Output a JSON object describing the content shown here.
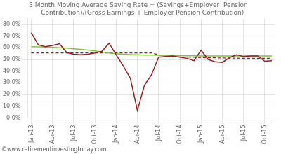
{
  "chart_data": {
    "type": "line",
    "title": [
      "3 Month Moving Average Saving Rate = (Savings+Employer  Pension",
      "    Contribution)/(Gross Earnings + Employer Pension Contribution)"
    ],
    "annotations": [
      "©www.retirementinvestingtoday.com"
    ],
    "categories": [
      "Jan-13",
      null,
      null,
      "Apr-13",
      null,
      null,
      "Jul-13",
      null,
      null,
      "Oct-13",
      null,
      null,
      "Jan-14",
      null,
      null,
      "Apr-14",
      null,
      null,
      "Jul-14",
      null,
      null,
      "Oct-14",
      null,
      null,
      "Jan-15",
      null,
      null,
      "Apr-15",
      null,
      null,
      "Jul-15",
      null,
      null,
      "Oct-15",
      null
    ],
    "series": [
      {
        "color": "#9b1c1c",
        "line_style": "solid",
        "values": [
          0.73,
          0.625,
          0.61,
          0.62,
          0.635,
          0.56,
          0.545,
          0.54,
          0.545,
          0.555,
          0.57,
          0.64,
          0.54,
          0.445,
          0.34,
          0.065,
          0.28,
          0.37,
          0.52,
          0.525,
          0.53,
          0.52,
          0.51,
          0.49,
          0.58,
          0.5,
          0.48,
          0.475,
          0.515,
          0.54,
          0.525,
          0.53,
          0.53,
          0.485,
          0.49
        ]
      },
      {
        "color": "#7dc832",
        "line_style": "solid",
        "values": [
          0.61,
          0.608,
          0.607,
          0.605,
          0.601,
          0.597,
          0.592,
          0.587,
          0.581,
          0.573,
          0.564,
          0.556,
          0.549,
          0.545,
          0.542,
          0.54,
          0.538,
          0.537,
          0.536,
          0.535,
          0.534,
          0.533,
          0.532,
          0.531,
          0.53,
          0.53,
          0.53,
          0.53,
          0.53,
          0.53,
          0.53,
          0.53,
          0.53,
          0.53,
          0.53
        ]
      },
      {
        "color": "#9b1c1c",
        "line_style": "dashed",
        "values": [
          0.556,
          0.556,
          0.556,
          0.556,
          0.556,
          0.556,
          0.556,
          0.556,
          0.556,
          0.556,
          0.556,
          0.556,
          0.556,
          0.556,
          0.556,
          0.556,
          0.556,
          0.556,
          0.54,
          0.53,
          0.524,
          0.522,
          0.52,
          0.518,
          0.516,
          0.515,
          0.514,
          0.513,
          0.512,
          0.511,
          0.51,
          0.51,
          0.51,
          0.51,
          0.51
        ]
      }
    ],
    "ylim": [
      0.0,
      0.85
    ],
    "yticks": [
      {
        "value": 0.0,
        "label": "0.0%"
      },
      {
        "value": 0.1,
        "label": "10.0%"
      },
      {
        "value": 0.2,
        "label": "20.0%"
      },
      {
        "value": 0.3,
        "label": "30.0%"
      },
      {
        "value": 0.4,
        "label": "40.0%"
      },
      {
        "value": 0.5,
        "label": "50.0%"
      },
      {
        "value": 0.6,
        "label": "60.0%"
      },
      {
        "value": 0.7,
        "label": "70.0%"
      },
      {
        "value": 0.8,
        "label": "80.0%"
      }
    ],
    "grid": true
  }
}
